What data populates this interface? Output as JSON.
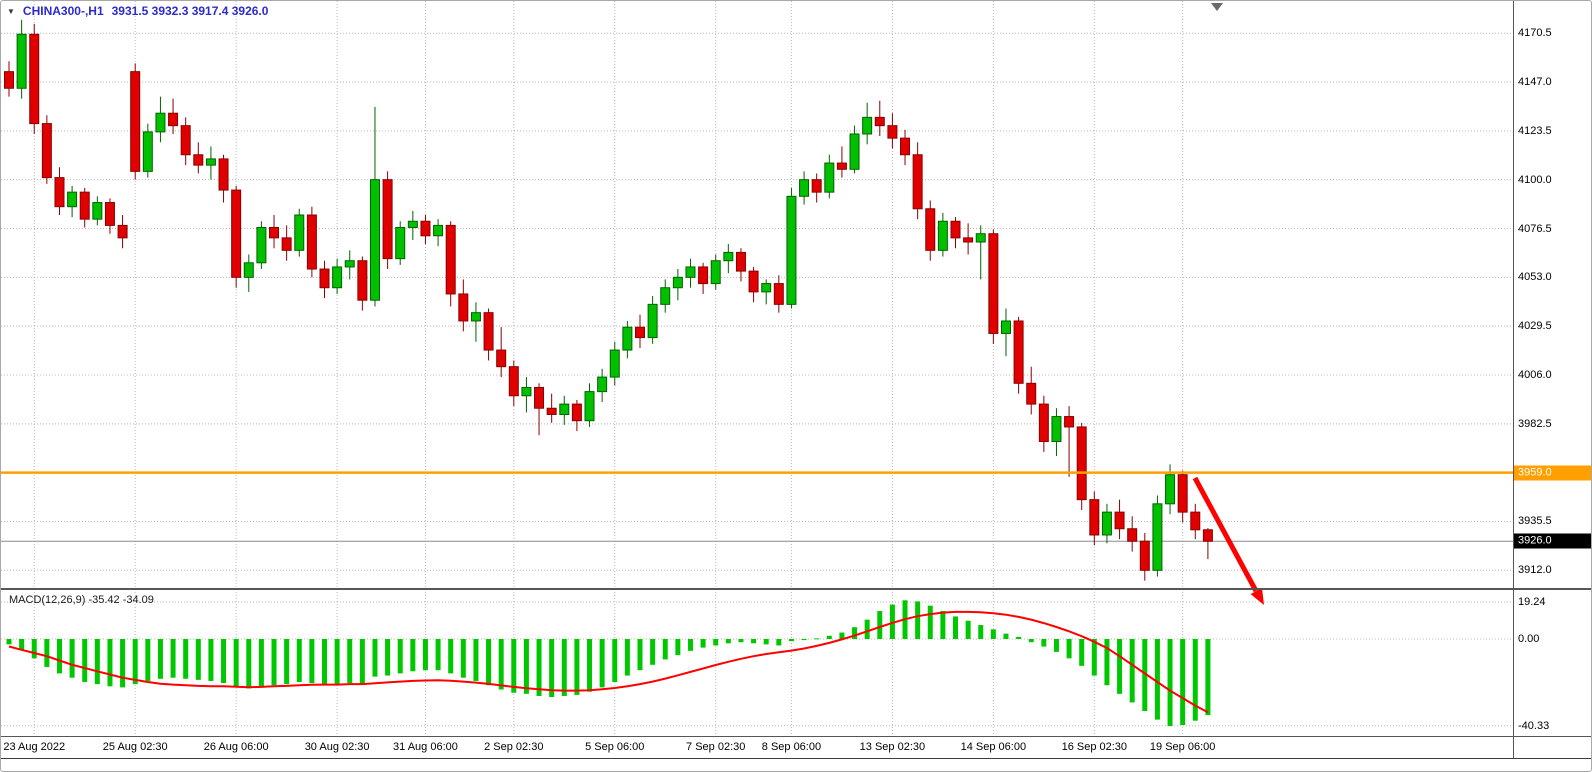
{
  "header": {
    "symbol": "CHINA300-,H1",
    "ohlc": "3931.5 3932.3 3917.4 3926.0"
  },
  "icons": {
    "dropdown": "▼"
  },
  "macd_panel": {
    "label": "MACD(12,26,9) -35.42 -34.09"
  },
  "colors": {
    "up": "#00c000",
    "up_border": "#006400",
    "down": "#e00000",
    "down_border": "#8b0000",
    "grid": "#b9b9b9",
    "bid_line": "#8c8c8c",
    "hist": "#00c800",
    "signal": "#ff0000",
    "orange": "#ffa000",
    "arrow": "#ff0000",
    "header_text": "#2b2bcc"
  },
  "chart_data": [
    {
      "type": "candlestick",
      "title": "CHINA300-,H1",
      "timeframe": "H1",
      "last_bar": {
        "open": 3931.5,
        "high": 3932.3,
        "low": 3917.4,
        "close": 3926.0
      },
      "ylim": [
        3903,
        4186
      ],
      "y_ticks": [
        4170.5,
        4147.0,
        4123.5,
        4100.0,
        4076.5,
        4053.0,
        4029.5,
        4006.0,
        3982.5,
        3959.0,
        3935.5,
        3912.0
      ],
      "horizontal_line": 3959.0,
      "current_price": 3926.0,
      "annotations": [
        {
          "type": "arrow",
          "direction": "down-right",
          "color": "red"
        }
      ],
      "x_labels": [
        {
          "label": "23 Aug 2022",
          "index": 2
        },
        {
          "label": "25 Aug 02:30",
          "index": 10
        },
        {
          "label": "26 Aug 06:00",
          "index": 18
        },
        {
          "label": "30 Aug 02:30",
          "index": 26
        },
        {
          "label": "31 Aug 06:00",
          "index": 33
        },
        {
          "label": "2 Sep 02:30",
          "index": 40
        },
        {
          "label": "5 Sep 06:00",
          "index": 48
        },
        {
          "label": "7 Sep 02:30",
          "index": 56
        },
        {
          "label": "8 Sep 06:00",
          "index": 62
        },
        {
          "label": "13 Sep 02:30",
          "index": 70
        },
        {
          "label": "14 Sep 06:00",
          "index": 78
        },
        {
          "label": "16 Sep 02:30",
          "index": 86
        },
        {
          "label": "19 Sep 06:00",
          "index": 93
        }
      ],
      "candles": [
        [
          4152,
          4157,
          4140,
          4144
        ],
        [
          4144,
          4177,
          4139,
          4170
        ],
        [
          4170,
          4175,
          4122,
          4127
        ],
        [
          4127,
          4131,
          4098,
          4101
        ],
        [
          4101,
          4106,
          4083,
          4087
        ],
        [
          4087,
          4097,
          4082,
          4094
        ],
        [
          4094,
          4096,
          4077,
          4081
        ],
        [
          4081,
          4092,
          4078,
          4089
        ],
        [
          4089,
          4091,
          4074,
          4078
        ],
        [
          4078,
          4083,
          4067,
          4072
        ],
        [
          4152,
          4156,
          4100,
          4104
        ],
        [
          4104,
          4127,
          4101,
          4123
        ],
        [
          4123,
          4140,
          4118,
          4132
        ],
        [
          4132,
          4139,
          4122,
          4126
        ],
        [
          4126,
          4130,
          4107,
          4112
        ],
        [
          4112,
          4118,
          4103,
          4107
        ],
        [
          4107,
          4116,
          4100,
          4110
        ],
        [
          4110,
          4112,
          4089,
          4095
        ],
        [
          4095,
          4097,
          4048,
          4053
        ],
        [
          4053,
          4064,
          4046,
          4060
        ],
        [
          4060,
          4080,
          4057,
          4077
        ],
        [
          4077,
          4083,
          4067,
          4072
        ],
        [
          4072,
          4078,
          4061,
          4066
        ],
        [
          4066,
          4086,
          4063,
          4083
        ],
        [
          4083,
          4087,
          4053,
          4057
        ],
        [
          4057,
          4061,
          4043,
          4048
        ],
        [
          4048,
          4062,
          4045,
          4058
        ],
        [
          4058,
          4066,
          4052,
          4061
        ],
        [
          4061,
          4063,
          4037,
          4042
        ],
        [
          4042,
          4135,
          4039,
          4100
        ],
        [
          4100,
          4104,
          4057,
          4062
        ],
        [
          4062,
          4080,
          4059,
          4077
        ],
        [
          4077,
          4085,
          4071,
          4080
        ],
        [
          4080,
          4083,
          4069,
          4073
        ],
        [
          4073,
          4081,
          4068,
          4078
        ],
        [
          4078,
          4080,
          4039,
          4045
        ],
        [
          4045,
          4052,
          4027,
          4032
        ],
        [
          4032,
          4041,
          4022,
          4036
        ],
        [
          4036,
          4038,
          4013,
          4018
        ],
        [
          4018,
          4029,
          4005,
          4010
        ],
        [
          4010,
          4013,
          3991,
          3996
        ],
        [
          3996,
          4005,
          3988,
          4000
        ],
        [
          4000,
          4002,
          3977,
          3990
        ],
        [
          3990,
          3997,
          3983,
          3987
        ],
        [
          3987,
          3996,
          3982,
          3992
        ],
        [
          3992,
          3994,
          3979,
          3984
        ],
        [
          3984,
          4002,
          3981,
          3998
        ],
        [
          3998,
          4009,
          3993,
          4005
        ],
        [
          4005,
          4022,
          4001,
          4018
        ],
        [
          4018,
          4032,
          4014,
          4029
        ],
        [
          4029,
          4035,
          4019,
          4024
        ],
        [
          4024,
          4044,
          4021,
          4040
        ],
        [
          4040,
          4052,
          4036,
          4048
        ],
        [
          4048,
          4057,
          4042,
          4053
        ],
        [
          4053,
          4062,
          4048,
          4058
        ],
        [
          4058,
          4060,
          4045,
          4050
        ],
        [
          4050,
          4064,
          4047,
          4061
        ],
        [
          4061,
          4069,
          4055,
          4065
        ],
        [
          4065,
          4067,
          4051,
          4056
        ],
        [
          4056,
          4058,
          4041,
          4046
        ],
        [
          4046,
          4052,
          4040,
          4050
        ],
        [
          4050,
          4054,
          4036,
          4040
        ],
        [
          4040,
          4096,
          4038,
          4092
        ],
        [
          4092,
          4104,
          4088,
          4100
        ],
        [
          4100,
          4103,
          4089,
          4094
        ],
        [
          4094,
          4112,
          4091,
          4108
        ],
        [
          4108,
          4116,
          4101,
          4105
        ],
        [
          4105,
          4126,
          4103,
          4122
        ],
        [
          4122,
          4137,
          4117,
          4130
        ],
        [
          4130,
          4138,
          4121,
          4126
        ],
        [
          4126,
          4132,
          4115,
          4120
        ],
        [
          4120,
          4124,
          4107,
          4112
        ],
        [
          4112,
          4118,
          4081,
          4086
        ],
        [
          4086,
          4090,
          4061,
          4066
        ],
        [
          4066,
          4084,
          4063,
          4080
        ],
        [
          4080,
          4082,
          4067,
          4072
        ],
        [
          4072,
          4079,
          4064,
          4070
        ],
        [
          4070,
          4078,
          4052,
          4074
        ],
        [
          4074,
          4076,
          4021,
          4026
        ],
        [
          4026,
          4038,
          4015,
          4032
        ],
        [
          4032,
          4034,
          3997,
          4002
        ],
        [
          4002,
          4010,
          3987,
          3992
        ],
        [
          3992,
          3996,
          3969,
          3974
        ],
        [
          3974,
          3990,
          3967,
          3986
        ],
        [
          3986,
          3991,
          3957,
          3981
        ],
        [
          3981,
          3983,
          3941,
          3946
        ],
        [
          3946,
          3950,
          3924,
          3929
        ],
        [
          3929,
          3944,
          3925,
          3940
        ],
        [
          3940,
          3946,
          3927,
          3932
        ],
        [
          3932,
          3938,
          3921,
          3926
        ],
        [
          3926,
          3930,
          3907,
          3912
        ],
        [
          3912,
          3948,
          3909,
          3944
        ],
        [
          3944,
          3963,
          3939,
          3958
        ],
        [
          3958,
          3960,
          3935,
          3940
        ],
        [
          3940,
          3944,
          3927,
          3931.5
        ],
        [
          3931.5,
          3932.3,
          3917.4,
          3926.0
        ]
      ]
    },
    {
      "type": "bar",
      "title": "MACD(12,26,9)",
      "macd_value": -35.42,
      "signal_value": -34.09,
      "ylim": [
        -45,
        21
      ],
      "y_ticks": [
        19.24,
        0,
        -40.33
      ],
      "histogram": [
        -2.5,
        -5,
        -9,
        -13,
        -16,
        -18,
        -20,
        -21,
        -22,
        -22.5,
        -21,
        -19.5,
        -18.5,
        -18,
        -18.5,
        -19,
        -19.5,
        -20.5,
        -22,
        -23,
        -22.5,
        -21.5,
        -21,
        -20,
        -20.5,
        -21.5,
        -21.5,
        -20.5,
        -21,
        -17.5,
        -17,
        -16,
        -15,
        -14.5,
        -14.5,
        -16,
        -18,
        -19.5,
        -21.5,
        -23.5,
        -25,
        -25.5,
        -26.5,
        -27,
        -26.5,
        -26,
        -24.5,
        -22.5,
        -20,
        -17,
        -14.5,
        -12,
        -9.5,
        -7.5,
        -5.5,
        -4,
        -3,
        -2,
        -1.5,
        -2,
        -2.5,
        -3,
        -1,
        -0.5,
        0.3,
        1.5,
        3,
        5.5,
        9,
        13,
        16,
        18,
        17.5,
        15.5,
        13,
        10.5,
        8.5,
        6.5,
        4.5,
        2.5,
        1,
        -1.5,
        -3.5,
        -6,
        -9,
        -12.5,
        -17,
        -21.5,
        -25.5,
        -29.5,
        -33.5,
        -37.5,
        -40.5,
        -40,
        -38,
        -35.42
      ],
      "signal": [
        -3.5,
        -5,
        -6.5,
        -8,
        -10,
        -12,
        -13.5,
        -15,
        -16.5,
        -18,
        -19,
        -20,
        -20.8,
        -21.2,
        -21.5,
        -21.8,
        -22,
        -22,
        -22.2,
        -22.4,
        -22.3,
        -22,
        -21.8,
        -21.5,
        -21.3,
        -21.2,
        -21.2,
        -21,
        -21,
        -20.6,
        -20.2,
        -19.8,
        -19.5,
        -19.3,
        -19.2,
        -19.4,
        -19.8,
        -20.3,
        -20.9,
        -21.6,
        -22.3,
        -22.9,
        -23.4,
        -23.8,
        -24,
        -24,
        -23.8,
        -23.4,
        -22.8,
        -22,
        -21,
        -19.8,
        -18.4,
        -16.9,
        -15.3,
        -13.7,
        -12.1,
        -10.6,
        -9.2,
        -8,
        -7,
        -6.2,
        -5.4,
        -4.4,
        -3.2,
        -1.8,
        -0.2,
        1.6,
        3.6,
        5.6,
        7.5,
        9.2,
        10.6,
        11.6,
        12.3,
        12.6,
        12.6,
        12.4,
        12,
        11.3,
        10.3,
        9,
        7.4,
        5.6,
        3.6,
        1.3,
        -1.3,
        -4.2,
        -8,
        -12,
        -16,
        -20,
        -24,
        -27.5,
        -31,
        -34.09
      ]
    }
  ]
}
